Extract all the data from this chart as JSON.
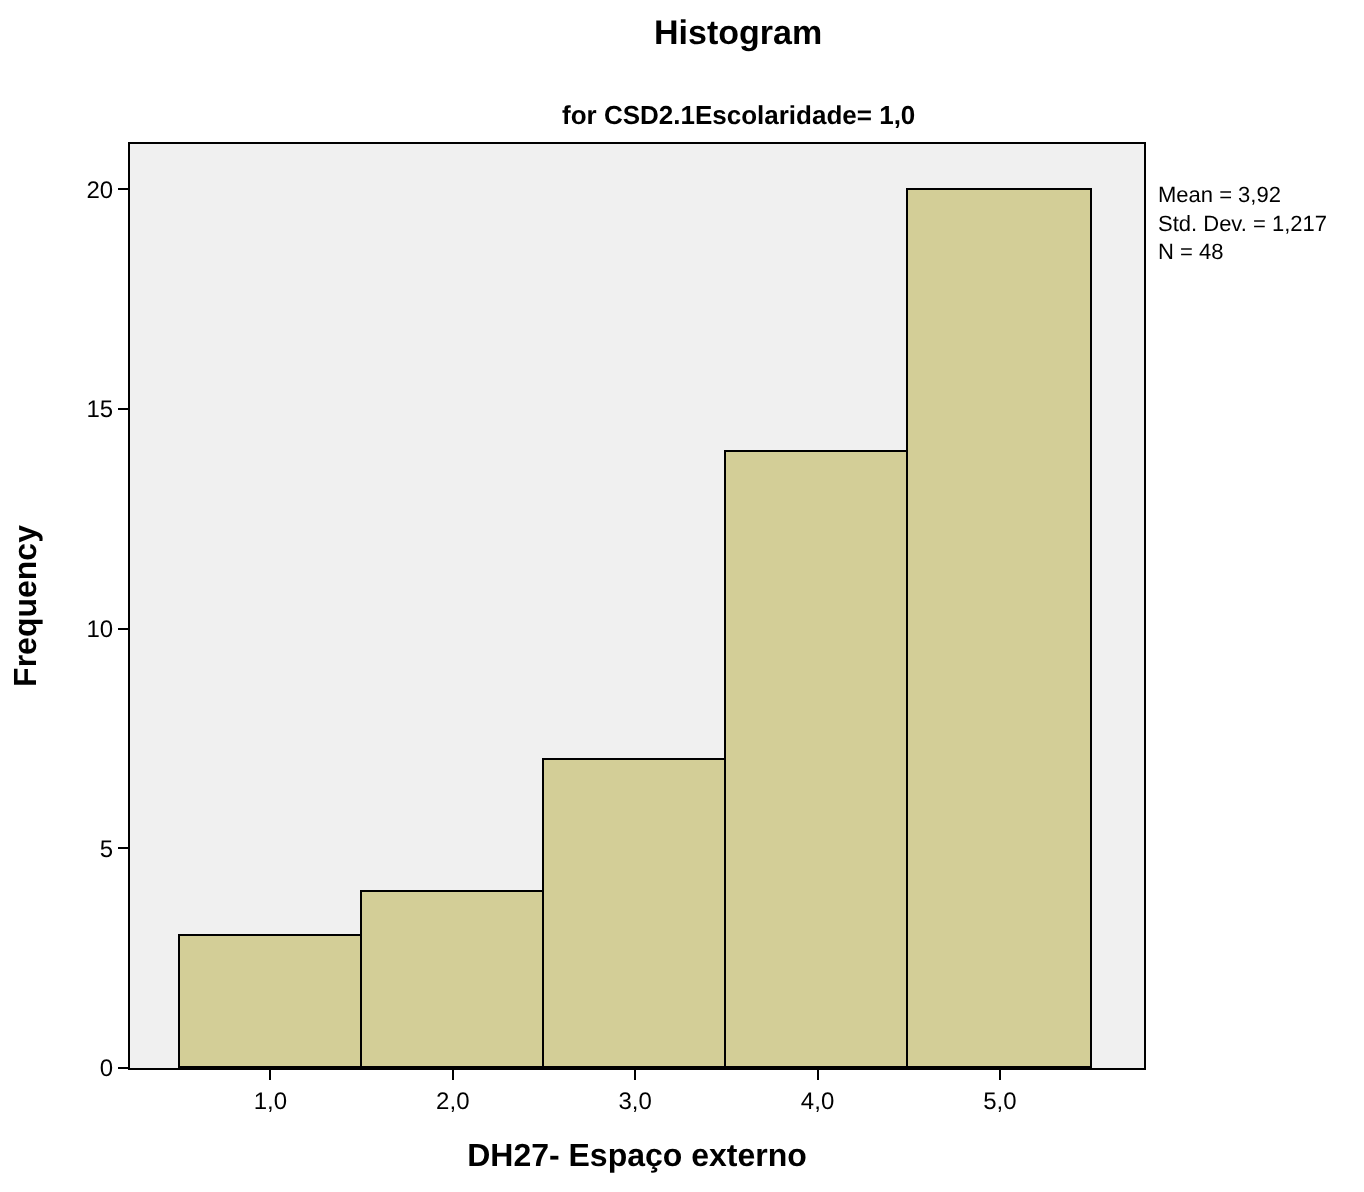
{
  "chart_data": {
    "type": "histogram",
    "title": "Histogram",
    "subtitle": "for CSD2.1Escolaridade= 1,0",
    "xlabel": "DH27- Espaço externo",
    "ylabel": "Frequency",
    "bins": [
      0.5,
      1.5,
      2.5,
      3.5,
      4.5,
      5.5
    ],
    "values": [
      3,
      4,
      7,
      14,
      20
    ],
    "color": "#d3ce97",
    "xlim": [
      0.23,
      5.79
    ],
    "xticks": [
      {
        "value": 1,
        "label": "1,0"
      },
      {
        "value": 2,
        "label": "2,0"
      },
      {
        "value": 3,
        "label": "3,0"
      },
      {
        "value": 4,
        "label": "4,0"
      },
      {
        "value": 5,
        "label": "5,0"
      }
    ],
    "ylim": [
      0,
      21.03
    ],
    "yticks": [
      0,
      5,
      10,
      15,
      20
    ],
    "annotations": [
      "Mean = 3,92",
      "Std. Dev. = 1,217",
      "N = 48"
    ]
  }
}
